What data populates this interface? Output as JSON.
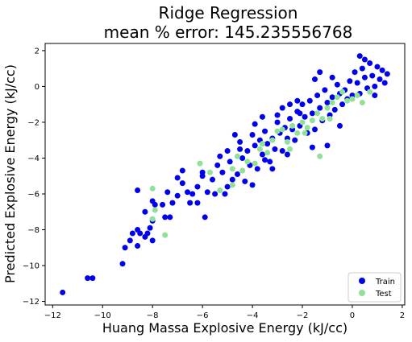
{
  "chart_data": {
    "type": "scatter",
    "title_line1": "Ridge Regression",
    "title_line2": "mean % error: 145.235556768",
    "xlabel": "Huang Massa Explosive Energy (kJ/cc)",
    "ylabel": "Predicted Explosive Energy (kJ/cc)",
    "xlim": [
      -12.3,
      2.1
    ],
    "ylim": [
      -12.2,
      2.4
    ],
    "xticks": [
      -12,
      -10,
      -8,
      -6,
      -4,
      -2,
      0,
      2
    ],
    "yticks": [
      -12,
      -10,
      -8,
      -6,
      -4,
      -2,
      0,
      2
    ],
    "legend_position": "lower-right",
    "series": [
      {
        "name": "Train",
        "color": "#0000ee",
        "points": [
          [
            -11.6,
            -11.5
          ],
          [
            -10.6,
            -10.7
          ],
          [
            -10.4,
            -10.7
          ],
          [
            -9.2,
            -9.9
          ],
          [
            -9.1,
            -9.0
          ],
          [
            -8.9,
            -8.6
          ],
          [
            -8.8,
            -8.2
          ],
          [
            -8.6,
            -8.0
          ],
          [
            -8.5,
            -8.2
          ],
          [
            -8.6,
            -8.9
          ],
          [
            -8.3,
            -8.4
          ],
          [
            -8.1,
            -7.9
          ],
          [
            -8.0,
            -7.5
          ],
          [
            -8.2,
            -8.2
          ],
          [
            -8.0,
            -8.6
          ],
          [
            -8.3,
            -7.0
          ],
          [
            -8.6,
            -5.8
          ],
          [
            -8.0,
            -6.4
          ],
          [
            -7.6,
            -6.6
          ],
          [
            -7.5,
            -7.3
          ],
          [
            -7.3,
            -7.3
          ],
          [
            -7.2,
            -6.5
          ],
          [
            -7.0,
            -6.1
          ],
          [
            -7.0,
            -5.1
          ],
          [
            -6.8,
            -5.4
          ],
          [
            -6.6,
            -5.9
          ],
          [
            -6.5,
            -6.5
          ],
          [
            -6.2,
            -6.5
          ],
          [
            -6.2,
            -5.6
          ],
          [
            -6.0,
            -5.0
          ],
          [
            -6.0,
            -4.8
          ],
          [
            -5.8,
            -5.9
          ],
          [
            -5.6,
            -5.2
          ],
          [
            -5.5,
            -6.0
          ],
          [
            -5.4,
            -4.4
          ],
          [
            -5.2,
            -4.8
          ],
          [
            -5.1,
            -6.0
          ],
          [
            -5.0,
            -5.6
          ],
          [
            -4.9,
            -4.2
          ],
          [
            -4.8,
            -5.2
          ],
          [
            -4.6,
            -4.9
          ],
          [
            -4.5,
            -3.5
          ],
          [
            -4.4,
            -4.0
          ],
          [
            -4.3,
            -5.3
          ],
          [
            -4.2,
            -3.6
          ],
          [
            -4.1,
            -4.4
          ],
          [
            -4.0,
            -2.7
          ],
          [
            -3.9,
            -3.3
          ],
          [
            -3.8,
            -4.6
          ],
          [
            -3.7,
            -3.0
          ],
          [
            -3.6,
            -3.8
          ],
          [
            -3.5,
            -2.5
          ],
          [
            -3.4,
            -3.2
          ],
          [
            -3.3,
            -4.2
          ],
          [
            -3.2,
            -2.9
          ],
          [
            -3.1,
            -3.5
          ],
          [
            -3.0,
            -2.0
          ],
          [
            -2.9,
            -2.6
          ],
          [
            -2.8,
            -3.6
          ],
          [
            -2.7,
            -2.3
          ],
          [
            -2.6,
            -2.9
          ],
          [
            -2.5,
            -1.8
          ],
          [
            -2.4,
            -2.4
          ],
          [
            -2.3,
            -3.0
          ],
          [
            -2.2,
            -1.4
          ],
          [
            -2.1,
            -2.2
          ],
          [
            -2.0,
            -1.0
          ],
          [
            -1.9,
            -1.7
          ],
          [
            -1.8,
            -2.6
          ],
          [
            -1.7,
            -0.8
          ],
          [
            -1.6,
            -1.5
          ],
          [
            -1.5,
            -2.4
          ],
          [
            -1.4,
            -0.5
          ],
          [
            -1.3,
            -1.2
          ],
          [
            -1.2,
            -1.9
          ],
          [
            -1.1,
            -0.2
          ],
          [
            -1.0,
            -0.9
          ],
          [
            -0.9,
            -1.6
          ],
          [
            -0.8,
            -0.6
          ],
          [
            -0.7,
            -1.3
          ],
          [
            -0.6,
            0.1
          ],
          [
            -0.5,
            -0.4
          ],
          [
            -0.4,
            -1.0
          ],
          [
            -0.3,
            -0.2
          ],
          [
            -0.2,
            -0.7
          ],
          [
            -0.1,
            0.3
          ],
          [
            0.0,
            -0.5
          ],
          [
            0.1,
            0.8
          ],
          [
            0.2,
            0.2
          ],
          [
            0.3,
            -0.4
          ],
          [
            0.4,
            1.0
          ],
          [
            0.5,
            0.5
          ],
          [
            0.6,
            -0.1
          ],
          [
            0.7,
            1.3
          ],
          [
            0.8,
            0.6
          ],
          [
            0.9,
            0.0
          ],
          [
            1.0,
            1.1
          ],
          [
            1.1,
            0.4
          ],
          [
            1.2,
            0.9
          ],
          [
            1.3,
            0.2
          ],
          [
            1.4,
            0.7
          ],
          [
            0.3,
            1.7
          ],
          [
            0.5,
            1.5
          ],
          [
            -2.1,
            -1.5
          ],
          [
            -3.5,
            -4.1
          ],
          [
            -2.6,
            -3.8
          ],
          [
            -3.9,
            -2.1
          ],
          [
            -2.8,
            -1.2
          ],
          [
            -4.7,
            -2.7
          ],
          [
            -5.3,
            -3.9
          ],
          [
            -1.5,
            0.4
          ],
          [
            -2.2,
            -0.8
          ],
          [
            -6.8,
            -4.7
          ],
          [
            -6.4,
            -6.0
          ],
          [
            -7.9,
            -6.6
          ],
          [
            -5.9,
            -7.3
          ],
          [
            -7.4,
            -5.9
          ],
          [
            -4.0,
            -5.5
          ],
          [
            -3.2,
            -4.6
          ],
          [
            -1.0,
            -3.3
          ],
          [
            -0.5,
            -2.2
          ],
          [
            -1.6,
            -3.4
          ],
          [
            -2.5,
            -1.0
          ],
          [
            -3.0,
            -1.6
          ],
          [
            -4.5,
            -3.1
          ],
          [
            -5.0,
            -3.6
          ],
          [
            -3.6,
            -1.7
          ],
          [
            -1.3,
            0.8
          ],
          [
            -0.8,
            0.5
          ],
          [
            0.9,
            -0.5
          ]
        ]
      },
      {
        "name": "Test",
        "color": "#90e098",
        "points": [
          [
            -8.0,
            -7.4
          ],
          [
            -7.9,
            -6.9
          ],
          [
            -8.0,
            -5.7
          ],
          [
            -7.5,
            -8.3
          ],
          [
            -6.1,
            -4.3
          ],
          [
            -5.7,
            -4.8
          ],
          [
            -5.3,
            -5.8
          ],
          [
            -4.8,
            -4.6
          ],
          [
            -4.6,
            -3.9
          ],
          [
            -4.4,
            -4.7
          ],
          [
            -4.2,
            -4.2
          ],
          [
            -3.9,
            -4.3
          ],
          [
            -3.6,
            -3.2
          ],
          [
            -3.4,
            -3.7
          ],
          [
            -3.2,
            -3.0
          ],
          [
            -3.0,
            -2.5
          ],
          [
            -2.8,
            -2.4
          ],
          [
            -2.6,
            -3.1
          ],
          [
            -2.4,
            -2.2
          ],
          [
            -2.2,
            -2.6
          ],
          [
            -2.0,
            -2.0
          ],
          [
            -1.8,
            -2.3
          ],
          [
            -1.6,
            -1.9
          ],
          [
            -1.4,
            -1.5
          ],
          [
            -1.2,
            -1.8
          ],
          [
            -1.0,
            -1.2
          ],
          [
            -0.8,
            -0.9
          ],
          [
            -0.6,
            -0.6
          ],
          [
            -0.4,
            -0.3
          ],
          [
            -0.2,
            -0.8
          ],
          [
            0.0,
            -0.7
          ],
          [
            0.2,
            -0.5
          ],
          [
            0.4,
            -0.9
          ],
          [
            0.7,
            -0.3
          ],
          [
            -1.9,
            -2.6
          ],
          [
            -2.5,
            -3.5
          ],
          [
            -0.9,
            -1.8
          ],
          [
            -1.3,
            -3.9
          ],
          [
            -3.7,
            -3.5
          ],
          [
            -4.8,
            -5.5
          ]
        ]
      }
    ]
  }
}
